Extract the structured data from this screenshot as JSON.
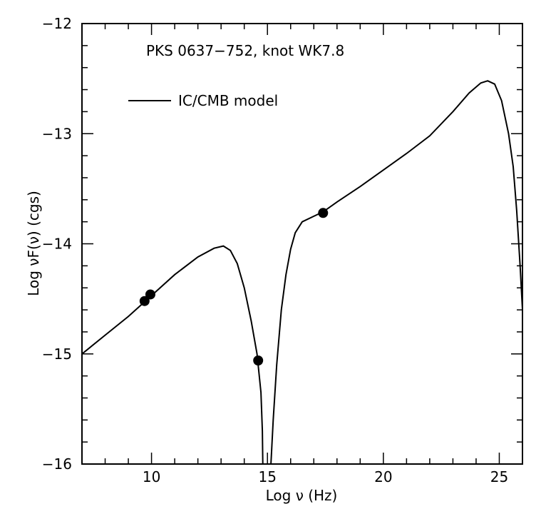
{
  "chart_data": {
    "type": "line",
    "annotation": "PKS 0637−752, knot WK7.8",
    "xlabel": "Log ν (Hz)",
    "ylabel": "Log νF(ν) (cgs)",
    "xlim": [
      7,
      26
    ],
    "ylim": [
      -16,
      -12
    ],
    "x_ticks": [
      10,
      15,
      20,
      25
    ],
    "y_ticks": [
      -16,
      -15,
      -14,
      -13,
      -12
    ],
    "x_tick_labels": [
      "10",
      "15",
      "20",
      "25"
    ],
    "y_tick_labels": [
      "−16",
      "−15",
      "−14",
      "−13",
      "−12"
    ],
    "grid": false,
    "legend_position": "top-left",
    "legend_entries": [
      {
        "label": "IC/CMB model",
        "style": "line"
      }
    ],
    "series": [
      {
        "name": "IC/CMB model",
        "kind": "line",
        "segments": [
          [
            [
              7.0,
              -15.0
            ],
            [
              8.0,
              -14.83
            ],
            [
              9.0,
              -14.66
            ],
            [
              10.0,
              -14.47
            ],
            [
              11.0,
              -14.28
            ],
            [
              12.0,
              -14.12
            ],
            [
              12.7,
              -14.04
            ],
            [
              13.1,
              -14.02
            ],
            [
              13.4,
              -14.06
            ],
            [
              13.7,
              -14.18
            ],
            [
              14.0,
              -14.4
            ],
            [
              14.3,
              -14.7
            ],
            [
              14.55,
              -15.0
            ],
            [
              14.72,
              -15.35
            ],
            [
              14.78,
              -15.7
            ],
            [
              14.8,
              -16.0
            ]
          ],
          [
            [
              15.15,
              -16.0
            ],
            [
              15.25,
              -15.6
            ],
            [
              15.4,
              -15.1
            ],
            [
              15.6,
              -14.6
            ],
            [
              15.8,
              -14.28
            ],
            [
              16.0,
              -14.05
            ],
            [
              16.2,
              -13.9
            ],
            [
              16.5,
              -13.8
            ],
            [
              17.0,
              -13.75
            ],
            [
              17.4,
              -13.71
            ],
            [
              18.0,
              -13.62
            ],
            [
              19.0,
              -13.48
            ],
            [
              20.0,
              -13.33
            ],
            [
              21.0,
              -13.18
            ],
            [
              22.0,
              -13.02
            ],
            [
              23.0,
              -12.8
            ],
            [
              23.7,
              -12.63
            ],
            [
              24.2,
              -12.54
            ],
            [
              24.5,
              -12.52
            ],
            [
              24.8,
              -12.55
            ],
            [
              25.1,
              -12.7
            ],
            [
              25.4,
              -13.0
            ],
            [
              25.6,
              -13.3
            ],
            [
              25.75,
              -13.7
            ],
            [
              25.9,
              -14.2
            ],
            [
              26.0,
              -14.6
            ]
          ]
        ]
      },
      {
        "name": "",
        "kind": "scatter",
        "points": [
          [
            9.7,
            -14.52
          ],
          [
            9.95,
            -14.46
          ],
          [
            14.6,
            -15.06
          ],
          [
            17.4,
            -13.72
          ]
        ]
      }
    ]
  }
}
